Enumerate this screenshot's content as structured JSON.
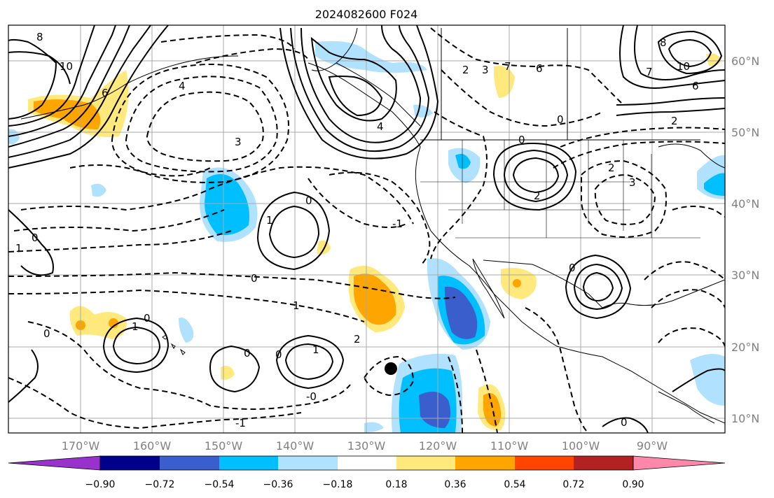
{
  "title": "2024082600 F024",
  "map": {
    "x_ticks": [
      "170°W",
      "160°W",
      "150°W",
      "140°W",
      "130°W",
      "120°W",
      "110°W",
      "100°W",
      "90°W"
    ],
    "y_ticks": [
      "60°N",
      "50°N",
      "40°N",
      "30°N",
      "20°N",
      "10°N"
    ]
  },
  "colorbar": {
    "ticks": [
      "−0.90",
      "−0.72",
      "−0.54",
      "−0.36",
      "−0.18",
      "0.18",
      "0.36",
      "0.54",
      "0.72",
      "0.90"
    ],
    "colors": [
      "#9932cc",
      "#00008b",
      "#3a5fcd",
      "#00bfff",
      "#b0e2ff",
      "#ffffff",
      "#ffe87c",
      "#ffa500",
      "#ff4500",
      "#b22222",
      "#ff88aa"
    ]
  },
  "contour_labels": [
    "8",
    "10",
    "6",
    "4",
    "3",
    "0",
    "1",
    "2",
    "3",
    "6",
    "7",
    "0",
    "2",
    "3",
    "0",
    "1",
    "-1",
    "0",
    "1",
    "0",
    "0",
    "1",
    "0",
    "-1",
    "2",
    "0",
    "-0",
    "0",
    "8",
    "10",
    "6",
    "7",
    "4",
    "2",
    "0",
    "0",
    "1",
    "2"
  ],
  "storm_marker": "filled-circle"
}
